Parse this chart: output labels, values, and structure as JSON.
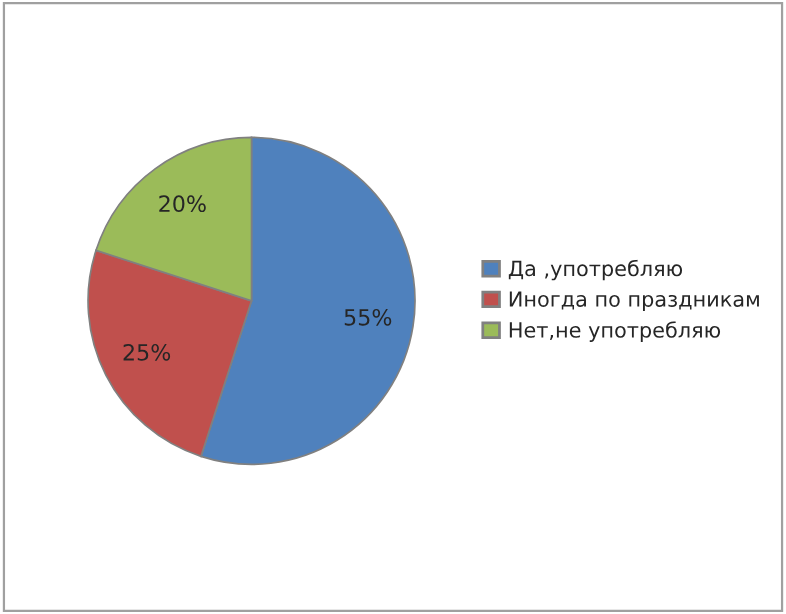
{
  "chart_data": {
    "type": "pie",
    "categories": [
      "Да ,употребляю",
      "Иногда по праздникам",
      "Нет,не употребляю"
    ],
    "values": [
      55,
      25,
      20
    ],
    "value_labels": [
      "55%",
      "25%",
      "20%"
    ],
    "colors": [
      "#4f81bd",
      "#c0504d",
      "#9bbb59"
    ],
    "legend": "right"
  }
}
